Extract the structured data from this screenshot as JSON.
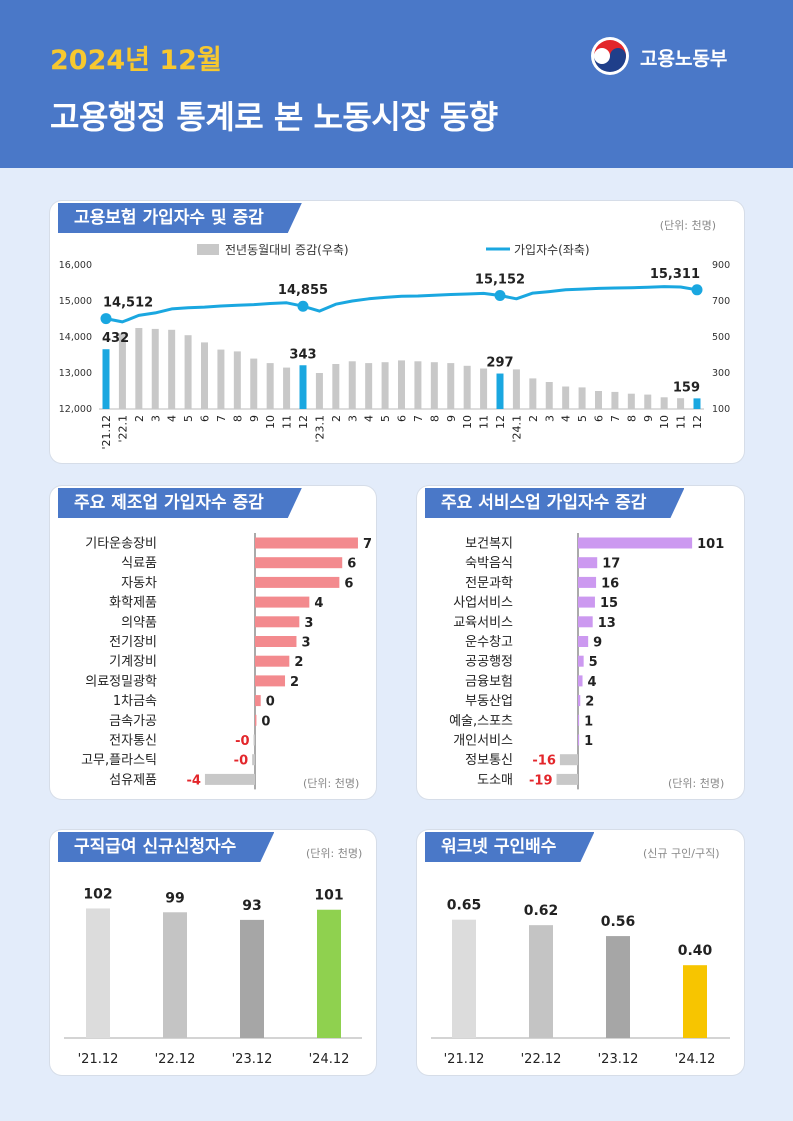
{
  "header": {
    "date": "2024년 12월",
    "title": "고용행정 통계로 본 노동시장 동향",
    "ministry": "고용노동부"
  },
  "colors": {
    "header_bg": "#4a78c8",
    "accent_yellow": "#f7c82f",
    "line_blue": "#1aa7e0",
    "bar_gray": "#c8c8c8",
    "manuf_bar": "#f38a8e",
    "service_bar": "#cc99f0",
    "negative_red": "#e3262b",
    "claims_highlight": "#8fd14f",
    "worknet_highlight": "#f7c500"
  },
  "cards": {
    "insurance": {
      "title": "고용보험 가입자수 및 증감",
      "unit": "(단위: 천명)"
    },
    "manufacturing": {
      "title": "주요 제조업 가입자수 증감",
      "unit": "(단위: 천명)"
    },
    "service": {
      "title": "주요 서비스업 가입자수 증감",
      "unit": "(단위: 천명)"
    },
    "claims": {
      "title": "구직급여 신규신청자수",
      "unit": "(단위: 천명)"
    },
    "worknet": {
      "title": "워크넷 구인배수",
      "unit": "(신규 구인/구직)"
    }
  },
  "chart_data": [
    {
      "id": "insurance",
      "type": "bar+line",
      "legend": [
        "전년동월대비 증감(우축)",
        "가입자수(좌축)"
      ],
      "categories": [
        "'21.12",
        "'22.1",
        "2",
        "3",
        "4",
        "5",
        "6",
        "7",
        "8",
        "9",
        "10",
        "11",
        "12",
        "'23.1",
        "2",
        "3",
        "4",
        "5",
        "6",
        "7",
        "8",
        "9",
        "10",
        "11",
        "12",
        "'24.1",
        "2",
        "3",
        "4",
        "5",
        "6",
        "7",
        "8",
        "9",
        "10",
        "11",
        "12"
      ],
      "left_axis": {
        "ylim": [
          12000,
          16000
        ],
        "ticks": [
          "12,000",
          "13,000",
          "14,000",
          "15,000",
          "16,000"
        ]
      },
      "right_axis": {
        "ylim": [
          100,
          900
        ],
        "ticks": [
          "100",
          "300",
          "500",
          "700",
          "900"
        ]
      },
      "series": [
        {
          "name": "전년동월대비 증감(우축)",
          "type": "bar",
          "values": [
            432,
            520,
            550,
            545,
            540,
            510,
            470,
            430,
            420,
            380,
            355,
            330,
            343,
            300,
            350,
            365,
            355,
            360,
            370,
            365,
            360,
            355,
            340,
            325,
            297,
            320,
            270,
            250,
            225,
            220,
            200,
            195,
            185,
            180,
            165,
            160,
            159
          ]
        },
        {
          "name": "가입자수(좌축)",
          "type": "line",
          "values": [
            14512,
            14420,
            14600,
            14670,
            14780,
            14810,
            14830,
            14860,
            14880,
            14900,
            14930,
            14950,
            14855,
            14720,
            14910,
            15000,
            15060,
            15100,
            15130,
            15140,
            15160,
            15180,
            15195,
            15210,
            15152,
            15060,
            15220,
            15260,
            15310,
            15330,
            15350,
            15360,
            15370,
            15380,
            15400,
            15390,
            15311
          ]
        }
      ],
      "labels": [
        {
          "index": 0,
          "line": "14,512",
          "bar": "432"
        },
        {
          "index": 12,
          "line": "14,855",
          "bar": "343"
        },
        {
          "index": 24,
          "line": "15,152",
          "bar": "297"
        },
        {
          "index": 36,
          "line": "15,311",
          "bar": "159"
        }
      ]
    },
    {
      "id": "manufacturing",
      "type": "bar",
      "orientation": "horizontal",
      "categories": [
        "기타운송장비",
        "식료품",
        "자동차",
        "화학제품",
        "의약품",
        "전기장비",
        "기계장비",
        "의료정밀광학",
        "1차금속",
        "금속가공",
        "전자통신",
        "고무,플라스틱",
        "섬유제품"
      ],
      "values": [
        7.2,
        6.1,
        5.9,
        3.8,
        3.1,
        2.9,
        2.4,
        2.1,
        0.4,
        0.1,
        -0.1,
        -0.2,
        -3.5
      ],
      "labels": [
        "7",
        "6",
        "6",
        "4",
        "3",
        "3",
        "2",
        "2",
        "0",
        "0",
        "-0",
        "-0",
        "-4"
      ]
    },
    {
      "id": "service",
      "type": "bar",
      "orientation": "horizontal",
      "categories": [
        "보건복지",
        "숙박음식",
        "전문과학",
        "사업서비스",
        "교육서비스",
        "운수창고",
        "공공행정",
        "금융보험",
        "부동산업",
        "예술,스포츠",
        "개인서비스",
        "정보통신",
        "도소매"
      ],
      "values": [
        101,
        17,
        16,
        15,
        13,
        9,
        5,
        4,
        2,
        1,
        1,
        -16,
        -19
      ],
      "labels": [
        "101",
        "17",
        "16",
        "15",
        "13",
        "9",
        "5",
        "4",
        "2",
        "1",
        "1",
        "-16",
        "-19"
      ]
    },
    {
      "id": "claims",
      "type": "bar",
      "categories": [
        "'21.12",
        "'22.12",
        "'23.12",
        "'24.12"
      ],
      "values": [
        102,
        99,
        93,
        101
      ],
      "labels": [
        "102",
        "99",
        "93",
        "101"
      ]
    },
    {
      "id": "worknet",
      "type": "bar",
      "categories": [
        "'21.12",
        "'22.12",
        "'23.12",
        "'24.12"
      ],
      "values": [
        0.65,
        0.62,
        0.56,
        0.4
      ],
      "labels": [
        "0.65",
        "0.62",
        "0.56",
        "0.40"
      ]
    }
  ]
}
